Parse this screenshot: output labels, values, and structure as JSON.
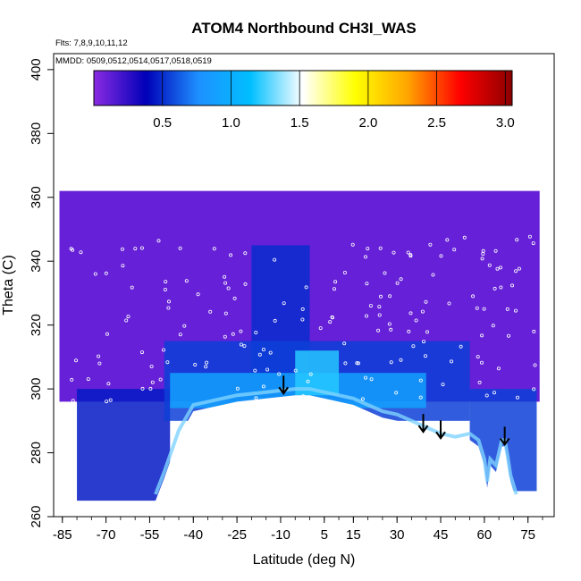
{
  "chart_data": {
    "type": "heatmap",
    "title": "ATOM4 Northbound CH3I_WAS",
    "notes": [
      "Flts: 7,8,9,10,11,12",
      "MMDD: 0509,0512,0514,0517,0518,0519"
    ],
    "xlabel": "Latitude (deg N)",
    "ylabel": "Theta (C)",
    "xlim": [
      -88,
      84
    ],
    "ylim": [
      260,
      405
    ],
    "xticks": [
      -85,
      -70,
      -55,
      -40,
      -25,
      -10,
      5,
      15,
      30,
      45,
      60,
      75
    ],
    "yticks": [
      260,
      280,
      300,
      320,
      340,
      360,
      380,
      400
    ],
    "colorbar": {
      "range": [
        0,
        3.05
      ],
      "ticks": [
        0.5,
        1.0,
        1.5,
        2.0,
        2.5,
        3.0
      ],
      "tick_labels": [
        "0.5",
        "1.0",
        "1.5",
        "2.0",
        "2.5",
        "3.0"
      ],
      "colors": [
        "#8a2be2",
        "#0000b8",
        "#1e90ff",
        "#00bfff",
        "#ffffff",
        "#ffff00",
        "#ffa500",
        "#ff0000",
        "#8b0000"
      ]
    },
    "grid": false,
    "surface_theta": [
      [
        -53,
        265
      ],
      [
        -50,
        272
      ],
      [
        -45,
        285
      ],
      [
        -40,
        293
      ],
      [
        -35,
        294
      ],
      [
        -30,
        295
      ],
      [
        -25,
        296
      ],
      [
        -20,
        296.5
      ],
      [
        -15,
        297
      ],
      [
        -10,
        297.5
      ],
      [
        -5,
        298
      ],
      [
        0,
        298
      ],
      [
        5,
        297
      ],
      [
        10,
        296
      ],
      [
        15,
        295
      ],
      [
        20,
        293
      ],
      [
        25,
        291
      ],
      [
        30,
        290
      ],
      [
        35,
        288
      ],
      [
        40,
        286
      ],
      [
        45,
        284
      ],
      [
        50,
        283
      ],
      [
        55,
        284
      ],
      [
        58,
        282
      ],
      [
        60,
        276
      ],
      [
        61,
        269
      ],
      [
        62,
        276
      ],
      [
        64,
        274
      ],
      [
        66,
        282
      ],
      [
        67,
        282
      ],
      [
        68,
        277
      ],
      [
        69,
        271
      ],
      [
        71,
        265
      ]
    ],
    "arrows": [
      {
        "lat": -9,
        "theta": 298
      },
      {
        "lat": 39,
        "theta": 286
      },
      {
        "lat": 45,
        "theta": 284
      },
      {
        "lat": 67,
        "theta": 282
      }
    ],
    "field_regions": [
      {
        "level": 0.1,
        "lat": [
          -86,
          79
        ],
        "theta": [
          296,
          362
        ]
      },
      {
        "level": 0.45,
        "lat": [
          -80,
          -48
        ],
        "theta": [
          265,
          300
        ]
      },
      {
        "level": 0.5,
        "lat": [
          -20,
          0
        ],
        "theta": [
          298,
          345
        ]
      },
      {
        "level": 0.55,
        "lat": [
          -50,
          55
        ],
        "theta": [
          290,
          315
        ]
      },
      {
        "level": 0.9,
        "lat": [
          -48,
          40
        ],
        "theta": [
          294,
          305
        ]
      },
      {
        "level": 1.2,
        "lat": [
          -5,
          10
        ],
        "theta": [
          298,
          312
        ]
      },
      {
        "level": 0.55,
        "lat": [
          55,
          78
        ],
        "theta": [
          268,
          300
        ]
      }
    ]
  }
}
